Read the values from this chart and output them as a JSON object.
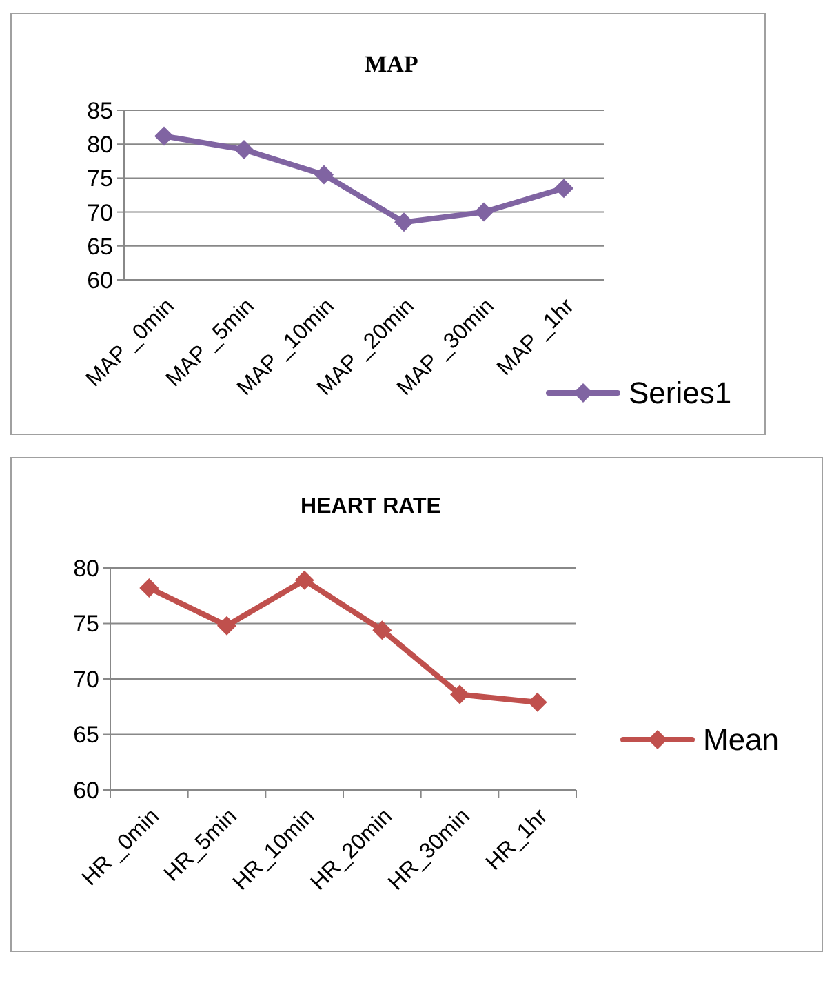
{
  "chart_data": [
    {
      "type": "line",
      "title": "MAP",
      "categories": [
        "MAP _0min",
        "MAP _5min",
        "MAP _10min",
        "MAP _20min",
        "MAP _30min",
        "MAP _1hr"
      ],
      "series": [
        {
          "name": "Series1",
          "color": "#8064a2",
          "values": [
            81.2,
            79.2,
            75.5,
            68.5,
            70,
            73.5
          ]
        }
      ],
      "ylim": [
        60,
        85
      ],
      "yticks": [
        60,
        65,
        70,
        75,
        80,
        85
      ],
      "grid": "y",
      "legend": "right",
      "marker": "diamond",
      "line_style": "solid"
    },
    {
      "type": "line",
      "title": "HEART RATE",
      "categories": [
        "HR _0min",
        "HR_5min",
        "HR_10min",
        "HR_20min",
        "HR_30min",
        "HR_1hr"
      ],
      "series": [
        {
          "name": "Mean",
          "color": "#c0504d",
          "values": [
            78.2,
            74.8,
            78.9,
            74.4,
            68.6,
            67.9
          ]
        }
      ],
      "ylim": [
        60,
        80
      ],
      "yticks": [
        60,
        65,
        70,
        75,
        80
      ],
      "grid": "y",
      "legend": "right",
      "marker": "diamond",
      "line_style": "solid"
    }
  ]
}
